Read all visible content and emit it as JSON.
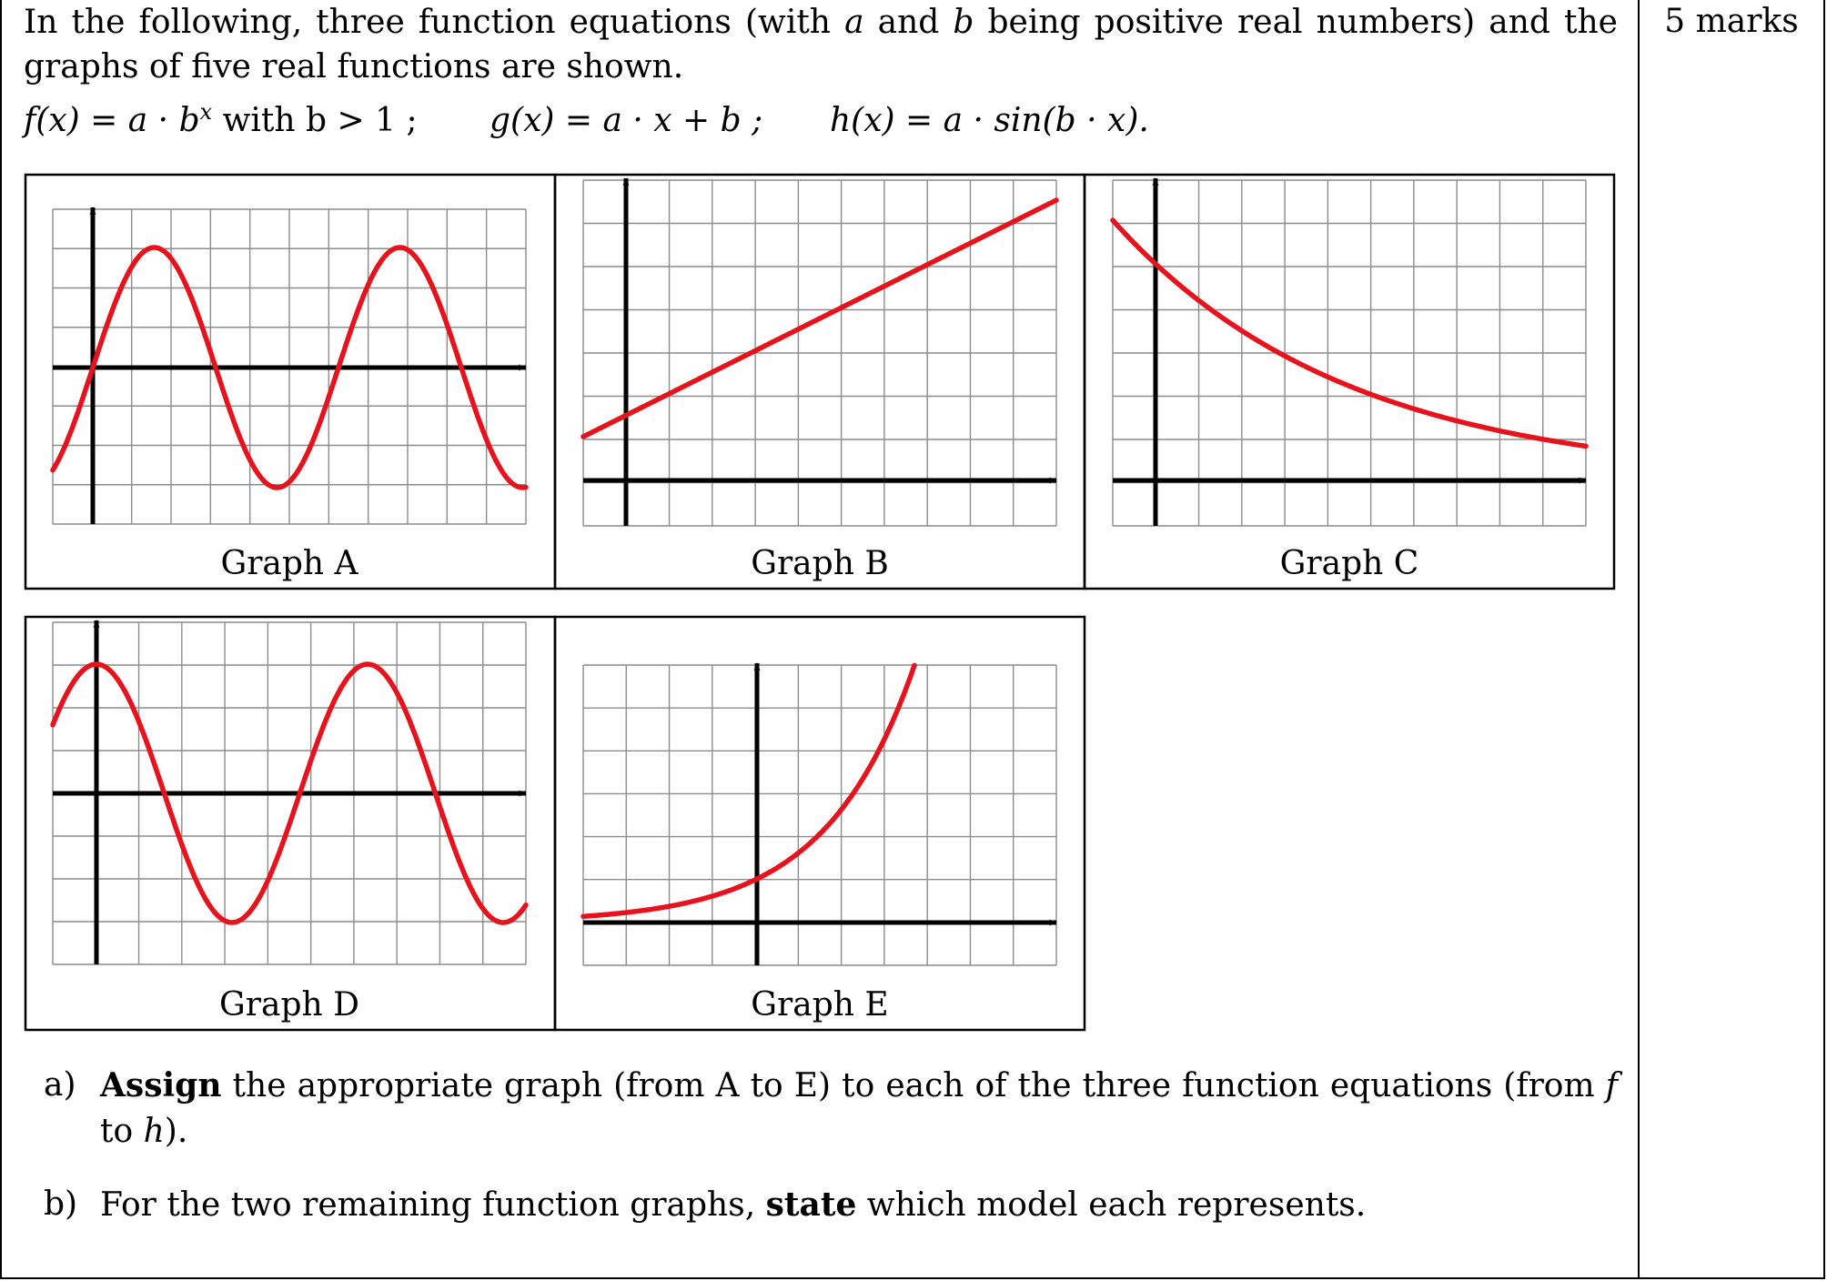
{
  "marks": "5 marks",
  "intro": {
    "part1": "In the following, three function equations (with ",
    "a": "a",
    "part2": " and ",
    "b": "b",
    "part3": " being positive real numbers) and the graphs of five real functions are shown."
  },
  "equations": [
    {
      "lhs": "f(x)",
      "rhs": " = a · b",
      "sup": "x",
      "tail": " with b > 1 ;"
    },
    {
      "lhs": "g(x)",
      "rhs": " = a · x + b ;",
      "sup": "",
      "tail": ""
    },
    {
      "lhs": "h(x)",
      "rhs": " = a · sin(b · x).",
      "sup": "",
      "tail": ""
    }
  ],
  "graphs": [
    {
      "id": "A",
      "label": "Graph A",
      "type": "sine",
      "description": "sine curve through the origin"
    },
    {
      "id": "B",
      "label": "Graph B",
      "type": "linear",
      "description": "increasing straight line with positive y-intercept"
    },
    {
      "id": "C",
      "label": "Graph C",
      "type": "exponential-decay",
      "description": "decreasing exponential curve"
    },
    {
      "id": "D",
      "label": "Graph D",
      "type": "cosine",
      "description": "cosine curve with maximum on the y-axis"
    },
    {
      "id": "E",
      "label": "Graph E",
      "type": "exponential-growth",
      "description": "increasing exponential curve"
    }
  ],
  "questions": [
    {
      "label": "a)",
      "bold": "Assign",
      "text": " the appropriate graph (from A to E) to each of the three function equations (from ",
      "f": "f",
      "mid": " to ",
      "h": "h",
      "end": ")."
    },
    {
      "label": "b)",
      "pre": "For the two remaining function graphs, ",
      "bold": "state",
      "text": " which model each represents."
    }
  ],
  "colors": {
    "curve": "#e8121c",
    "grid": "#8c8c8c",
    "axis": "#000000"
  }
}
